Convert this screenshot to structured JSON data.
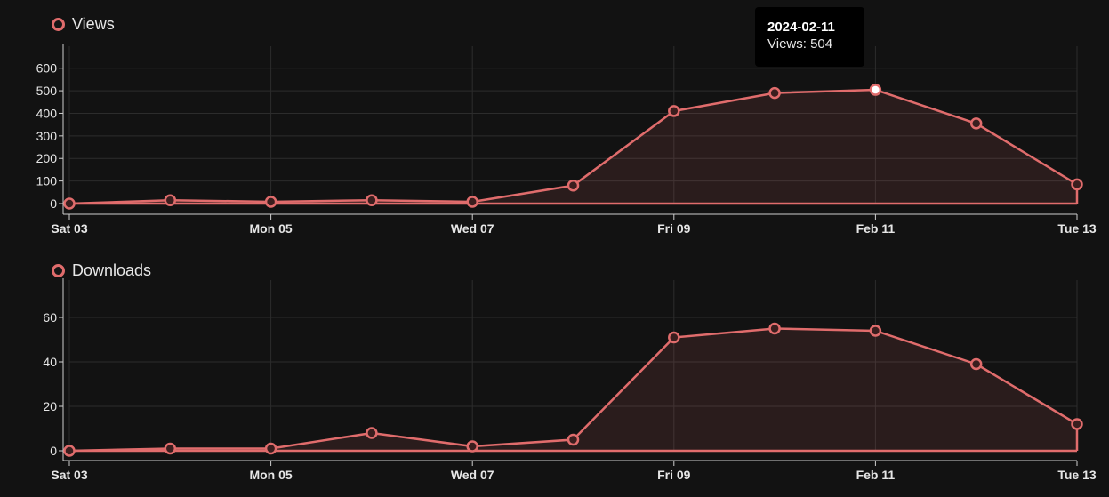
{
  "accent_color": "#e06c6c",
  "x_labels": [
    "Sat 03",
    "Mon 05",
    "Wed 07",
    "Fri 09",
    "Feb 11",
    "Tue 13"
  ],
  "views": {
    "legend": "Views",
    "y_ticks": [
      "0",
      "100",
      "200",
      "300",
      "400",
      "500",
      "600"
    ]
  },
  "downloads": {
    "legend": "Downloads",
    "y_ticks": [
      "0",
      "20",
      "40",
      "60"
    ]
  },
  "tooltip": {
    "title": "2024-02-11",
    "value": "Views: 504"
  },
  "chart_data": [
    {
      "type": "area",
      "x": [
        "2024-02-03",
        "2024-02-04",
        "2024-02-05",
        "2024-02-06",
        "2024-02-07",
        "2024-02-08",
        "2024-02-09",
        "2024-02-10",
        "2024-02-11",
        "2024-02-12",
        "2024-02-13"
      ],
      "series": [
        {
          "name": "Views",
          "values": [
            0,
            15,
            8,
            15,
            8,
            80,
            410,
            490,
            504,
            355,
            85
          ]
        }
      ],
      "ylim": [
        0,
        650
      ],
      "grid": true,
      "legend": "top-left"
    },
    {
      "type": "area",
      "x": [
        "2024-02-03",
        "2024-02-04",
        "2024-02-05",
        "2024-02-06",
        "2024-02-07",
        "2024-02-08",
        "2024-02-09",
        "2024-02-10",
        "2024-02-11",
        "2024-02-12",
        "2024-02-13"
      ],
      "series": [
        {
          "name": "Downloads",
          "values": [
            0,
            1,
            1,
            8,
            2,
            5,
            51,
            55,
            54,
            39,
            12
          ]
        }
      ],
      "ylim": [
        0,
        72
      ],
      "grid": true,
      "legend": "top-left"
    }
  ]
}
